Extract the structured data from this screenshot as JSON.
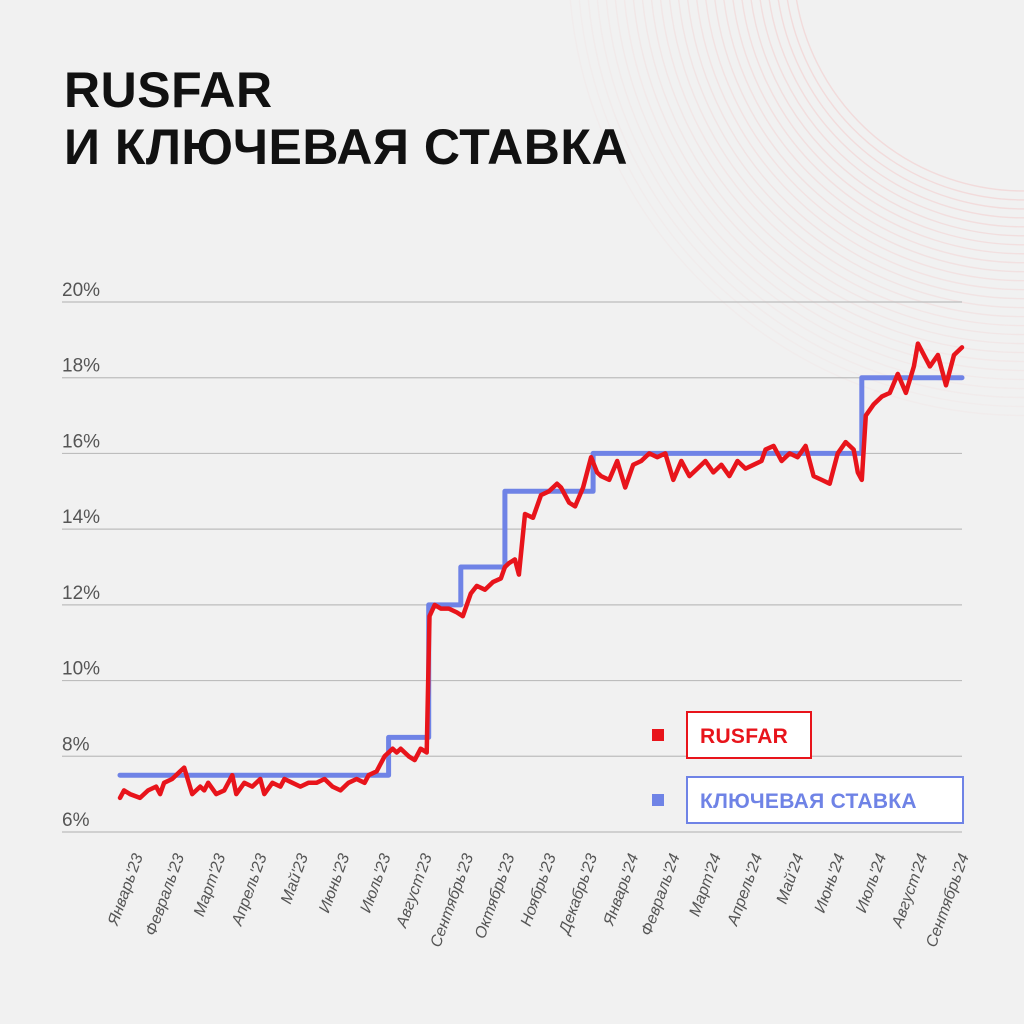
{
  "title": {
    "line1": "RUSFAR",
    "line2": "И КЛЮЧЕВАЯ СТАВКА"
  },
  "colors": {
    "background": "#f1f1f1",
    "rusfar": "#e8141b",
    "key_rate": "#6f83e6",
    "grid": "#bdbdbd",
    "decoration": "#f3c8c8"
  },
  "legend": [
    {
      "label": "RUSFAR",
      "color": "#e8141b"
    },
    {
      "label": "КЛЮЧЕВАЯ СТАВКА",
      "color": "#6f83e6"
    }
  ],
  "chart_data": {
    "type": "line",
    "ylim": [
      6,
      20
    ],
    "y_ticks": [
      "20%",
      "18%",
      "16%",
      "14%",
      "12%",
      "10%",
      "8%",
      "6%"
    ],
    "y_tick_values": [
      20,
      18,
      16,
      14,
      12,
      10,
      8,
      6
    ],
    "categories": [
      "Январь'23",
      "Февраль'23",
      "Март'23",
      "Апрель'23",
      "Май'23",
      "Июнь'23",
      "Июль'23",
      "Август'23",
      "Сентябрь'23",
      "Октябрь'23",
      "Ноябрь'23",
      "Декабрь'23",
      "Январь'24",
      "Февраль'24",
      "Март'24",
      "Апрель'24",
      "Май'24",
      "Июнь'24",
      "Июль'24",
      "Август'24",
      "Сентябрь'24"
    ],
    "grid": true,
    "legend_position": "bottom-right",
    "series": [
      {
        "name": "КЛЮЧЕВАЯ СТАВКА",
        "x": [
          0,
          6.7,
          6.7,
          7.7,
          7.7,
          8.5,
          8.5,
          9.6,
          9.6,
          10.9,
          10.9,
          11.8,
          11.8,
          18.5,
          18.5,
          21.0
        ],
        "y": [
          7.5,
          7.5,
          8.5,
          8.5,
          12.0,
          12.0,
          13.0,
          13.0,
          15.0,
          15.0,
          15.0,
          15.0,
          16.0,
          16.0,
          18.0,
          18.0
        ]
      },
      {
        "name": "RUSFAR",
        "x": [
          0.0,
          0.1,
          0.25,
          0.5,
          0.7,
          0.9,
          1.0,
          1.1,
          1.3,
          1.5,
          1.6,
          1.8,
          2.0,
          2.1,
          2.2,
          2.4,
          2.6,
          2.8,
          2.9,
          3.1,
          3.3,
          3.5,
          3.6,
          3.8,
          4.0,
          4.1,
          4.3,
          4.5,
          4.7,
          4.9,
          5.1,
          5.3,
          5.5,
          5.7,
          5.9,
          6.1,
          6.2,
          6.4,
          6.6,
          6.8,
          6.9,
          7.0,
          7.2,
          7.35,
          7.5,
          7.65,
          7.72,
          7.85,
          8.0,
          8.2,
          8.4,
          8.55,
          8.75,
          8.9,
          9.1,
          9.3,
          9.5,
          9.6,
          9.7,
          9.85,
          9.95,
          10.1,
          10.3,
          10.5,
          10.7,
          10.9,
          11.0,
          11.2,
          11.35,
          11.55,
          11.75,
          11.9,
          12.0,
          12.2,
          12.4,
          12.6,
          12.8,
          13.0,
          13.2,
          13.4,
          13.6,
          13.8,
          14.0,
          14.2,
          14.4,
          14.6,
          14.8,
          15.0,
          15.2,
          15.4,
          15.6,
          15.8,
          16.0,
          16.1,
          16.3,
          16.5,
          16.7,
          16.9,
          17.1,
          17.3,
          17.5,
          17.7,
          17.9,
          18.1,
          18.3,
          18.4,
          18.5,
          18.6,
          18.8,
          19.0,
          19.2,
          19.4,
          19.6,
          19.8,
          19.9,
          20.0,
          20.2,
          20.4,
          20.6,
          20.8,
          21.0
        ],
        "y": [
          6.9,
          7.1,
          7.0,
          6.9,
          7.1,
          7.2,
          7.0,
          7.3,
          7.4,
          7.6,
          7.7,
          7.0,
          7.2,
          7.1,
          7.3,
          7.0,
          7.1,
          7.5,
          7.0,
          7.3,
          7.2,
          7.4,
          7.0,
          7.3,
          7.2,
          7.4,
          7.3,
          7.2,
          7.3,
          7.3,
          7.4,
          7.2,
          7.1,
          7.3,
          7.4,
          7.3,
          7.5,
          7.6,
          8.0,
          8.2,
          8.1,
          8.2,
          8.0,
          7.9,
          8.2,
          8.1,
          11.7,
          12.0,
          11.9,
          11.9,
          11.8,
          11.7,
          12.3,
          12.5,
          12.4,
          12.6,
          12.7,
          13.0,
          13.1,
          13.2,
          12.8,
          14.4,
          14.3,
          14.9,
          15.0,
          15.2,
          15.1,
          14.7,
          14.6,
          15.1,
          15.9,
          15.5,
          15.4,
          15.3,
          15.8,
          15.1,
          15.7,
          15.8,
          16.0,
          15.9,
          16.0,
          15.3,
          15.8,
          15.4,
          15.6,
          15.8,
          15.5,
          15.7,
          15.4,
          15.8,
          15.6,
          15.7,
          15.8,
          16.1,
          16.2,
          15.8,
          16.0,
          15.9,
          16.2,
          15.4,
          15.3,
          15.2,
          16.0,
          16.3,
          16.1,
          15.5,
          15.3,
          17.0,
          17.3,
          17.5,
          17.6,
          18.1,
          17.6,
          18.3,
          18.9,
          18.7,
          18.3,
          18.6,
          17.8,
          18.6,
          18.8
        ]
      }
    ]
  }
}
